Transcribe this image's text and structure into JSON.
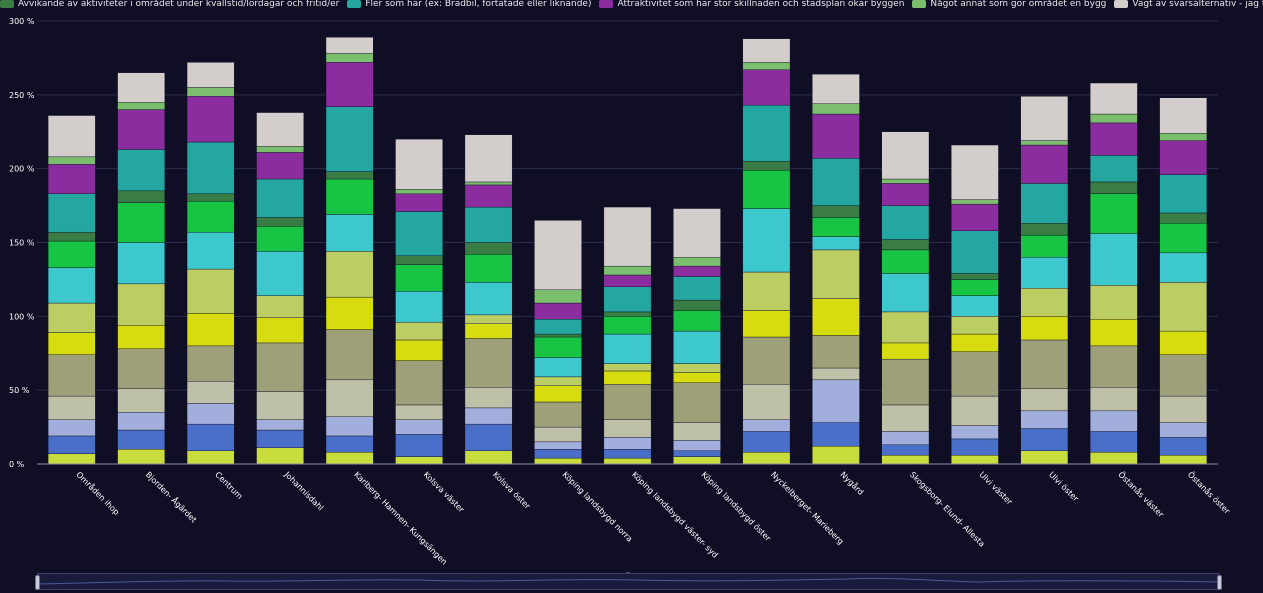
{
  "chart_data": {
    "type": "bar",
    "stacked": true,
    "grid": true,
    "legend_position": "top",
    "ylim": [
      0,
      300
    ],
    "yticks": [
      "0 %",
      "50 %",
      "100 %",
      "150 %",
      "200 %",
      "250 %",
      "300 %"
    ],
    "categories": [
      "Områden ihop",
      "Bjorden- Ågärdet",
      "Centrum",
      "Johannisdahl",
      "Karlberg- Hamnen- Kungsängen",
      "Kolsva väster",
      "Kolsva öster",
      "Köping landsbygd norra",
      "Köping landsbygd väster- syd",
      "Köping landsbygd öster",
      "Nyckelberget- Marieberg",
      "Nygård",
      "Skogsborg- Elund- Allesta",
      "Ulvi väster",
      "Ulvi öster",
      "Östanås väster",
      "Östanås öster"
    ],
    "legend_visible": [
      {
        "color": "#3a7d44",
        "label": "Avvikande av aktiviteter i området under kvällstid/lördagar och fritid/er"
      },
      {
        "color": "#23a7a0",
        "label": "Fler som har (ex: Brädbil, förtätade eller liknande)"
      },
      {
        "color": "#8b2d9e",
        "label": "Attraktivitet som har stor skillnaden och stadsplan ökar byggen"
      },
      {
        "color": "#7bbf6e",
        "label": "Något annat som gör området en bygg"
      },
      {
        "color": "#d3cdcc",
        "label": "Vägt av svarsalternativ - jag tycker inte att man området är byggt alls"
      }
    ],
    "series": [
      {
        "color": "#c8dc3c",
        "values": [
          7,
          10,
          9,
          11,
          8,
          5,
          9,
          4,
          4,
          5,
          8,
          12,
          6,
          6,
          9,
          8,
          6
        ]
      },
      {
        "color": "#4a6fc8",
        "values": [
          12,
          13,
          18,
          12,
          11,
          15,
          18,
          6,
          6,
          4,
          14,
          16,
          7,
          11,
          15,
          14,
          12
        ]
      },
      {
        "color": "#a2aedc",
        "values": [
          11,
          12,
          14,
          7,
          13,
          10,
          11,
          5,
          8,
          7,
          8,
          29,
          9,
          9,
          12,
          14,
          10
        ]
      },
      {
        "color": "#bfc0a8",
        "values": [
          16,
          16,
          15,
          19,
          25,
          10,
          14,
          10,
          12,
          12,
          24,
          8,
          18,
          20,
          15,
          16,
          18
        ]
      },
      {
        "color": "#9ea07a",
        "values": [
          28,
          27,
          24,
          33,
          34,
          30,
          33,
          17,
          24,
          27,
          32,
          22,
          31,
          30,
          33,
          28,
          28
        ]
      },
      {
        "color": "#d6dc10",
        "values": [
          15,
          16,
          22,
          17,
          22,
          14,
          10,
          11,
          9,
          7,
          18,
          25,
          11,
          12,
          16,
          18,
          16
        ]
      },
      {
        "color": "#bccd64",
        "values": [
          20,
          28,
          30,
          15,
          31,
          12,
          6,
          6,
          5,
          6,
          26,
          33,
          21,
          12,
          19,
          23,
          33
        ]
      },
      {
        "color": "#3cc8cc",
        "values": [
          24,
          28,
          25,
          30,
          25,
          21,
          22,
          13,
          20,
          22,
          43,
          9,
          26,
          14,
          21,
          35,
          20
        ]
      },
      {
        "color": "#18c444",
        "values": [
          18,
          27,
          21,
          17,
          24,
          18,
          19,
          14,
          12,
          14,
          26,
          13,
          16,
          11,
          15,
          27,
          20
        ]
      },
      {
        "color": "#3a7d44",
        "values": [
          6,
          8,
          5,
          6,
          5,
          6,
          8,
          2,
          3,
          7,
          6,
          8,
          7,
          4,
          8,
          8,
          7
        ]
      },
      {
        "color": "#23a7a0",
        "values": [
          26,
          28,
          35,
          26,
          44,
          30,
          24,
          10,
          17,
          16,
          38,
          32,
          23,
          29,
          27,
          18,
          26
        ]
      },
      {
        "color": "#8b2d9e",
        "values": [
          20,
          27,
          31,
          18,
          30,
          12,
          15,
          11,
          8,
          7,
          24,
          30,
          15,
          18,
          26,
          22,
          23
        ]
      },
      {
        "color": "#7bbf6e",
        "values": [
          5,
          5,
          6,
          4,
          6,
          3,
          2,
          9,
          6,
          6,
          5,
          7,
          3,
          3,
          3,
          6,
          5
        ]
      },
      {
        "color": "#d3cdcc",
        "values": [
          28,
          20,
          17,
          23,
          11,
          34,
          32,
          47,
          40,
          33,
          16,
          20,
          32,
          37,
          30,
          21,
          24
        ]
      }
    ]
  }
}
